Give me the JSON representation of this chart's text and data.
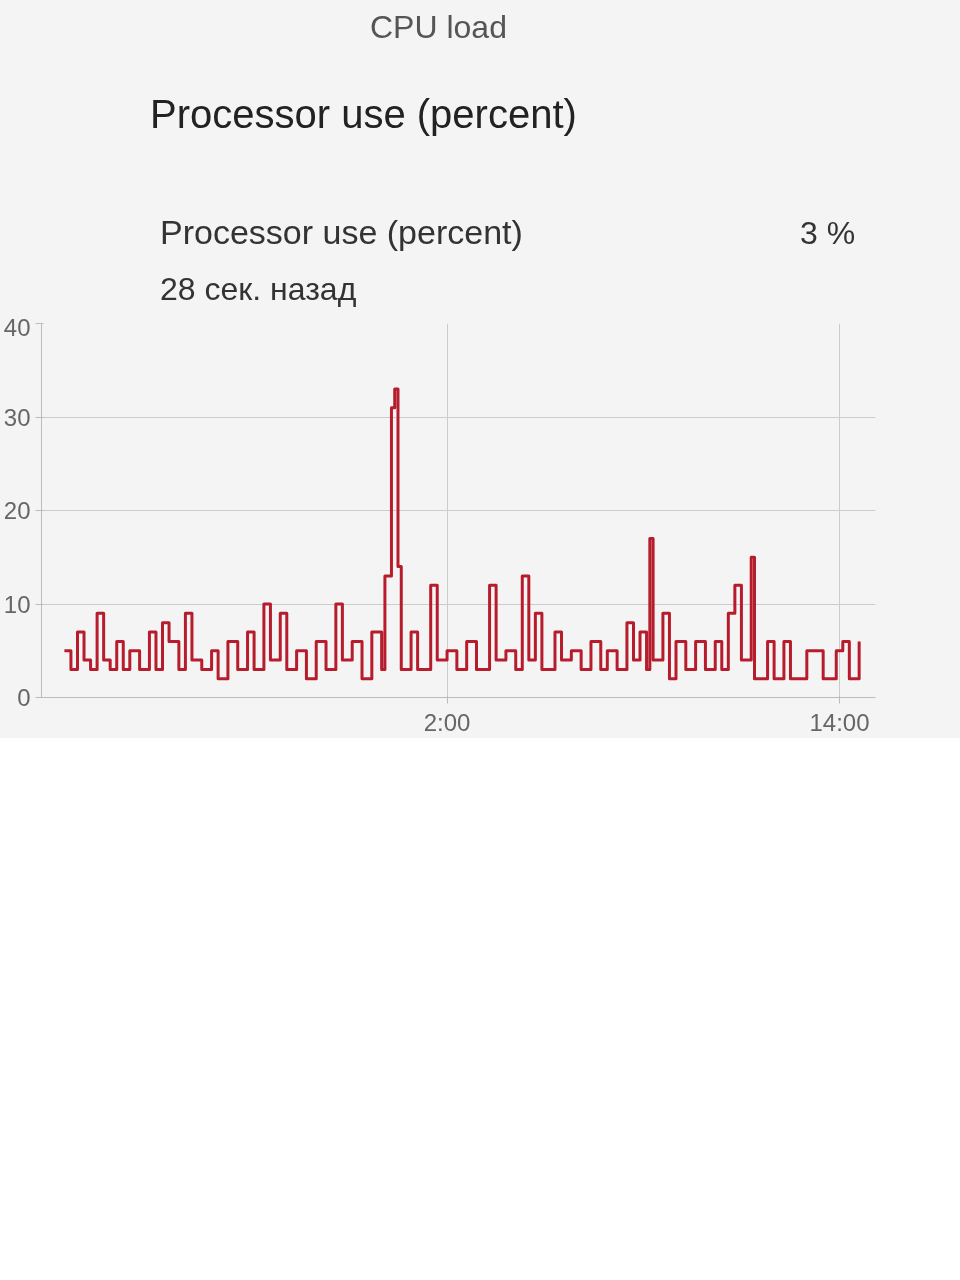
{
  "chart_data": {
    "type": "step",
    "title": "Processor use (percent)",
    "subtitle": "28 сек. назад",
    "annotations": [
      "CPU load",
      "Processor use (percent)",
      "3 %"
    ],
    "x": [
      "2000-01-01T14:18",
      "2000-01-01T14:30",
      "2000-01-01T14:42",
      "2000-01-01T14:54",
      "2000-01-01T15:06",
      "2000-01-01T15:18",
      "2000-01-01T15:30",
      "2000-01-01T15:42",
      "2000-01-01T15:54",
      "2000-01-01T16:06",
      "2000-01-01T16:18",
      "2000-01-01T16:36",
      "2000-01-01T16:54",
      "2000-01-01T17:06",
      "2000-01-01T17:18",
      "2000-01-01T17:30",
      "2000-01-01T17:48",
      "2000-01-01T18:00",
      "2000-01-01T18:12",
      "2000-01-01T18:30",
      "2000-01-01T18:48",
      "2000-01-01T19:00",
      "2000-01-01T19:18",
      "2000-01-01T19:36",
      "2000-01-01T19:54",
      "2000-01-01T20:06",
      "2000-01-01T20:24",
      "2000-01-01T20:36",
      "2000-01-01T20:54",
      "2000-01-01T21:06",
      "2000-01-01T21:24",
      "2000-01-01T21:42",
      "2000-01-01T22:00",
      "2000-01-01T22:18",
      "2000-01-01T22:36",
      "2000-01-01T22:48",
      "2000-01-01T23:06",
      "2000-01-01T23:24",
      "2000-01-01T23:42",
      "2000-01-02T00:00",
      "2000-01-02T00:06",
      "2000-01-02T00:18",
      "2000-01-02T00:24",
      "2000-01-02T00:30",
      "2000-01-02T00:36",
      "2000-01-02T00:54",
      "2000-01-02T01:06",
      "2000-01-02T01:30",
      "2000-01-02T01:42",
      "2000-01-02T02:00",
      "2000-01-02T02:18",
      "2000-01-02T02:36",
      "2000-01-02T02:54",
      "2000-01-02T03:18",
      "2000-01-02T03:30",
      "2000-01-02T03:48",
      "2000-01-02T04:06",
      "2000-01-02T04:18",
      "2000-01-02T04:30",
      "2000-01-02T04:42",
      "2000-01-02T04:54",
      "2000-01-02T05:18",
      "2000-01-02T05:30",
      "2000-01-02T05:48",
      "2000-01-02T06:06",
      "2000-01-02T06:24",
      "2000-01-02T06:42",
      "2000-01-02T06:54",
      "2000-01-02T07:12",
      "2000-01-02T07:30",
      "2000-01-02T07:42",
      "2000-01-02T07:54",
      "2000-01-02T08:06",
      "2000-01-02T08:12",
      "2000-01-02T08:18",
      "2000-01-02T08:36",
      "2000-01-02T08:48",
      "2000-01-02T09:00",
      "2000-01-02T09:18",
      "2000-01-02T09:36",
      "2000-01-02T09:54",
      "2000-01-02T10:12",
      "2000-01-02T10:24",
      "2000-01-02T10:36",
      "2000-01-02T10:48",
      "2000-01-02T11:00",
      "2000-01-02T11:18",
      "2000-01-02T11:24",
      "2000-01-02T11:48",
      "2000-01-02T12:00",
      "2000-01-02T12:18",
      "2000-01-02T12:30",
      "2000-01-02T13:00",
      "2000-01-02T13:12",
      "2000-01-02T13:30",
      "2000-01-02T13:54",
      "2000-01-02T14:06",
      "2000-01-02T14:18",
      "2000-01-02T14:36"
    ],
    "series": [
      {
        "color": "#b71c2c",
        "values": [
          5,
          3,
          7,
          4,
          3,
          9,
          4,
          3,
          6,
          3,
          5,
          3,
          7,
          3,
          8,
          6,
          3,
          9,
          4,
          3,
          5,
          2,
          6,
          3,
          7,
          3,
          10,
          4,
          9,
          3,
          5,
          2,
          6,
          3,
          10,
          4,
          6,
          2,
          7,
          3,
          13,
          31,
          33,
          14,
          3,
          7,
          3,
          12,
          4,
          5,
          3,
          6,
          3,
          12,
          4,
          5,
          3,
          13,
          4,
          9,
          3,
          7,
          4,
          5,
          3,
          6,
          3,
          5,
          3,
          8,
          4,
          7,
          3,
          17,
          4,
          9,
          2,
          6,
          3,
          6,
          3,
          6,
          3,
          9,
          12,
          4,
          15,
          2,
          6,
          2,
          6,
          2,
          5,
          5,
          2,
          5,
          6,
          2,
          6
        ]
      }
    ],
    "xlim": [
      "2000-01-01T13:36",
      "2000-01-02T15:06"
    ],
    "xticks": [
      {
        "value": "2000-01-02T02:00",
        "label": "2:00"
      },
      {
        "value": "2000-01-02T14:00",
        "label": "14:00"
      }
    ],
    "ylim": [
      0,
      40
    ],
    "yticks": [
      0,
      10,
      20,
      30,
      40
    ],
    "grid": true,
    "line_style": "solid"
  }
}
